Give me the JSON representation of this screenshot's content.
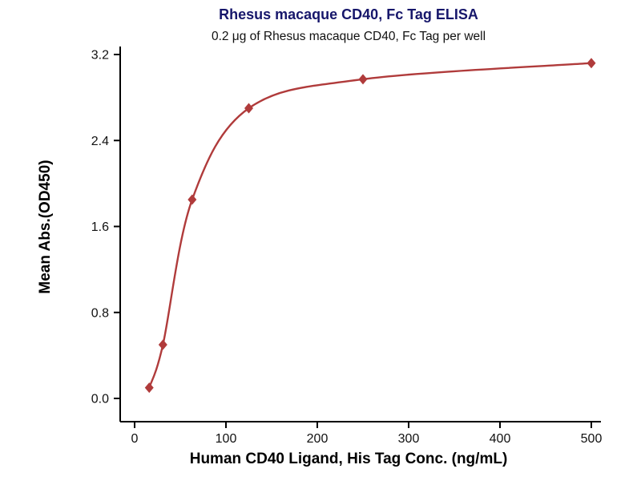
{
  "chart_data": {
    "type": "scatter",
    "title": "Rhesus macaque CD40, Fc Tag ELISA",
    "subtitle": "0.2 μg of Rhesus macaque CD40, Fc Tag per well",
    "xlabel": "Human CD40 Ligand, His Tag Conc. (ng/mL)",
    "ylabel": "Mean Abs.(OD450)",
    "series": [
      {
        "name": "Rhesus macaque CD40, Fc Tag",
        "x": [
          16,
          31,
          63,
          125,
          250,
          500
        ],
        "y": [
          0.1,
          0.5,
          1.85,
          2.7,
          2.97,
          3.12
        ]
      }
    ],
    "xlim": [
      0,
      500
    ],
    "ylim": [
      0.0,
      3.2
    ],
    "xticks": [
      0,
      100,
      200,
      300,
      400,
      500
    ],
    "yticks": [
      0.0,
      0.8,
      1.6,
      2.4,
      3.2
    ],
    "ytick_decimals": 1,
    "grid": false,
    "legend": "none",
    "marker": "diamond",
    "curve": "4PL sigmoidal fit",
    "colors": {
      "curve": "#B03B3B",
      "marker": "#B03B3B",
      "axis": "#000000",
      "title": "#17176B",
      "text": "#111111"
    }
  }
}
